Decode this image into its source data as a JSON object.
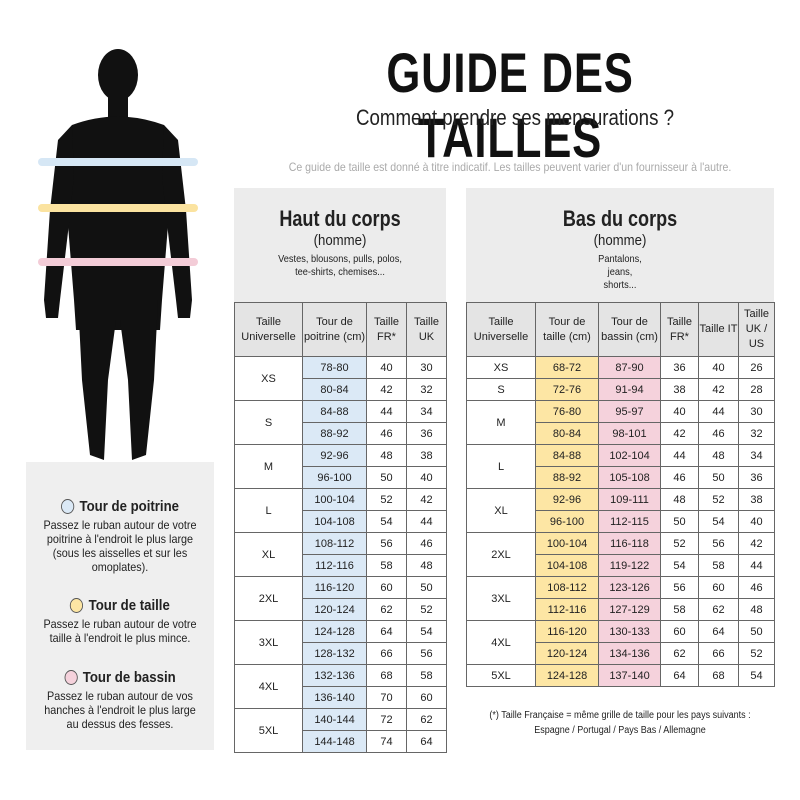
{
  "header": {
    "title": "GUIDE DES TAILLES",
    "subtitle": "Comment prendre ses mensurations ?",
    "note": "Ce guide de taille est donné à titre indicatif. Les tailles peuvent varier d'un fournisseur à l'autre."
  },
  "measures": [
    {
      "title": "Tour de poitrine",
      "text": "Passez le ruban autour de votre poitrine à l'endroit le plus large (sous les aisselles et sur les omoplates)."
    },
    {
      "title": "Tour de taille",
      "text": "Passez le ruban autour de votre taille à l'endroit le plus mince."
    },
    {
      "title": "Tour de bassin",
      "text": "Passez le ruban autour de vos hanches à l'endroit le plus large au dessus des fesses."
    }
  ],
  "top": {
    "title": "Haut du corps",
    "subtitle": "(homme)",
    "description": "Vestes, blousons, pulls, polos, tee-shirts, chemises...",
    "columns": [
      "Taille Universelle",
      "Tour de poitrine (cm)",
      "Taille FR*",
      "Taille UK"
    ],
    "rows": [
      {
        "size": "XS",
        "lines": [
          [
            "78-80",
            40,
            30
          ],
          [
            "80-84",
            42,
            32
          ]
        ]
      },
      {
        "size": "S",
        "lines": [
          [
            "84-88",
            44,
            34
          ],
          [
            "88-92",
            46,
            36
          ]
        ]
      },
      {
        "size": "M",
        "lines": [
          [
            "92-96",
            48,
            38
          ],
          [
            "96-100",
            50,
            40
          ]
        ]
      },
      {
        "size": "L",
        "lines": [
          [
            "100-104",
            52,
            42
          ],
          [
            "104-108",
            54,
            44
          ]
        ]
      },
      {
        "size": "XL",
        "lines": [
          [
            "108-112",
            56,
            46
          ],
          [
            "112-116",
            58,
            48
          ]
        ]
      },
      {
        "size": "2XL",
        "lines": [
          [
            "116-120",
            60,
            50
          ],
          [
            "120-124",
            62,
            52
          ]
        ]
      },
      {
        "size": "3XL",
        "lines": [
          [
            "124-128",
            64,
            54
          ],
          [
            "128-132",
            66,
            56
          ]
        ]
      },
      {
        "size": "4XL",
        "lines": [
          [
            "132-136",
            68,
            58
          ],
          [
            "136-140",
            70,
            60
          ]
        ]
      },
      {
        "size": "5XL",
        "lines": [
          [
            "140-144",
            72,
            62
          ],
          [
            "144-148",
            74,
            64
          ]
        ]
      }
    ]
  },
  "bottom": {
    "title": "Bas du corps",
    "subtitle": "(homme)",
    "description": "Pantalons, jeans, shorts...",
    "columns": [
      "Taille Universelle",
      "Tour de taille (cm)",
      "Tour de bassin (cm)",
      "Taille FR*",
      "Taille IT",
      "Taille UK / US"
    ],
    "rows": [
      {
        "size": "XS",
        "lines": [
          [
            "68-72",
            "87-90",
            36,
            40,
            26
          ]
        ]
      },
      {
        "size": "S",
        "lines": [
          [
            "72-76",
            "91-94",
            38,
            42,
            28
          ]
        ]
      },
      {
        "size": "M",
        "lines": [
          [
            "76-80",
            "95-97",
            40,
            44,
            30
          ],
          [
            "80-84",
            "98-101",
            42,
            46,
            32
          ]
        ]
      },
      {
        "size": "L",
        "lines": [
          [
            "84-88",
            "102-104",
            44,
            48,
            34
          ],
          [
            "88-92",
            "105-108",
            46,
            50,
            36
          ]
        ]
      },
      {
        "size": "XL",
        "lines": [
          [
            "92-96",
            "109-111",
            48,
            52,
            38
          ],
          [
            "96-100",
            "112-115",
            50,
            54,
            40
          ]
        ]
      },
      {
        "size": "2XL",
        "lines": [
          [
            "100-104",
            "116-118",
            52,
            56,
            42
          ],
          [
            "104-108",
            "119-122",
            54,
            58,
            44
          ]
        ]
      },
      {
        "size": "3XL",
        "lines": [
          [
            "108-112",
            "123-126",
            56,
            60,
            46
          ],
          [
            "112-116",
            "127-129",
            58,
            62,
            48
          ]
        ]
      },
      {
        "size": "4XL",
        "lines": [
          [
            "116-120",
            "130-133",
            60,
            64,
            50
          ],
          [
            "120-124",
            "134-136",
            62,
            66,
            52
          ]
        ]
      },
      {
        "size": "5XL",
        "lines": [
          [
            "124-128",
            "137-140",
            64,
            68,
            54
          ]
        ]
      }
    ]
  },
  "footnote": {
    "line1": "(*) Taille Française = même grille de taille pour les pays suivants :",
    "line2": "Espagne / Portugal / Pays Bas / Allemagne"
  }
}
